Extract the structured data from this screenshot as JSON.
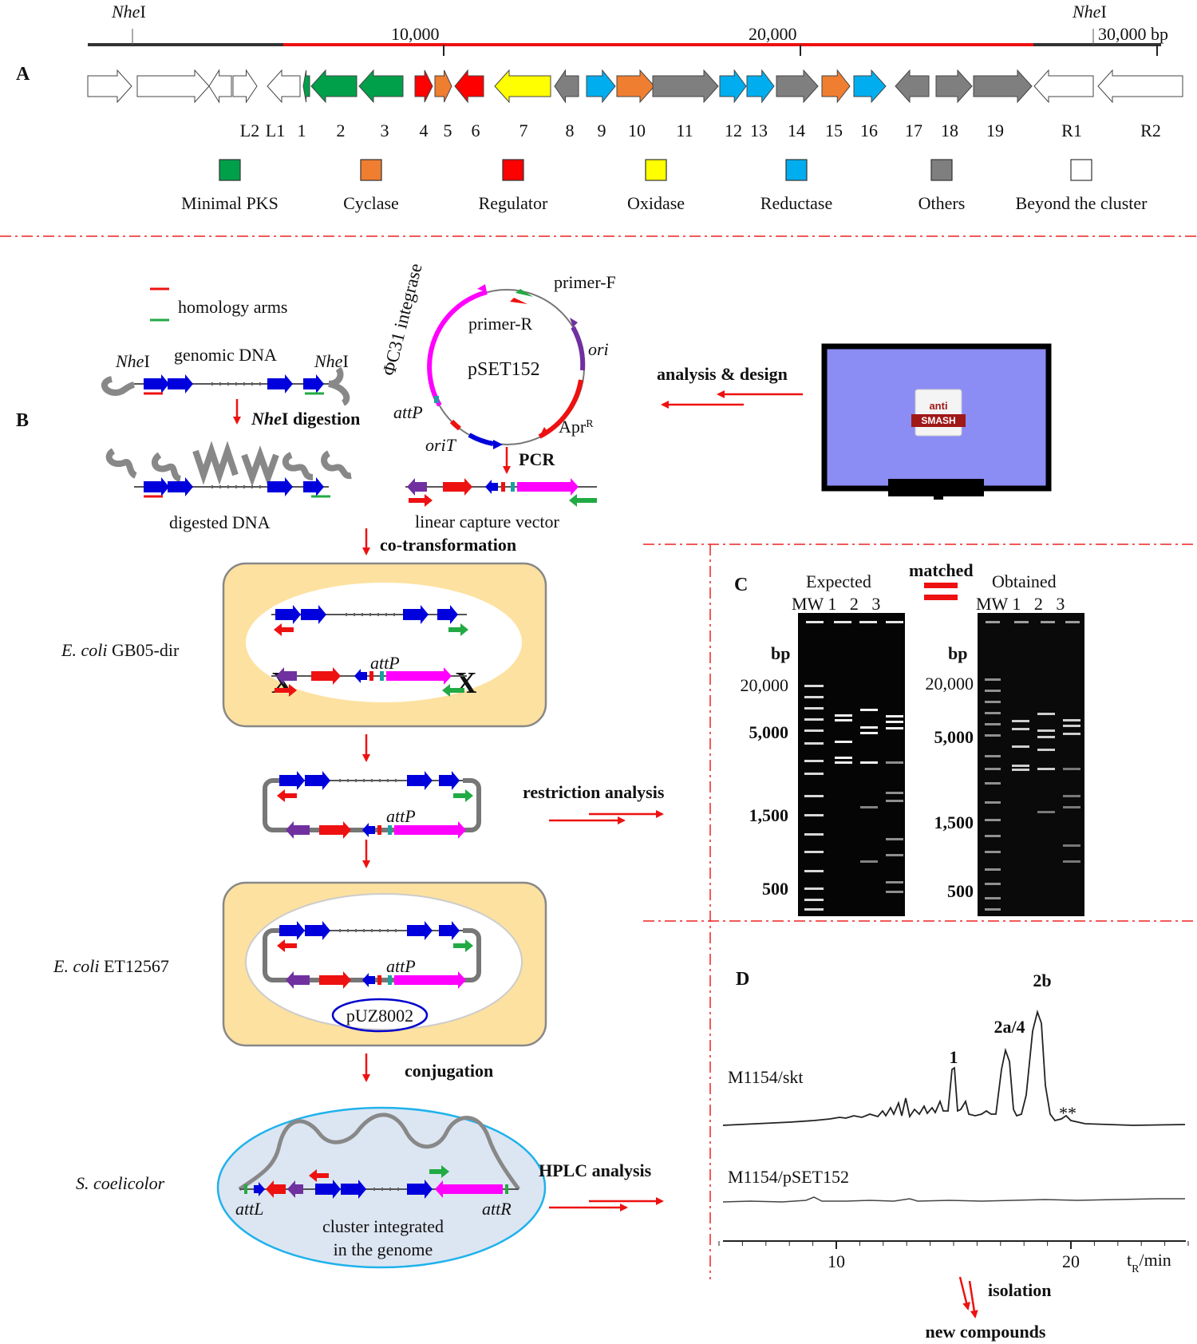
{
  "panelA": {
    "label": "A",
    "scale": {
      "nhe_left": "Nhe",
      "nhe_left_suffix": "I",
      "nhe_right": "Nhe",
      "nhe_right_suffix": "I",
      "tick10k": "10,000",
      "tick20k": "20,000",
      "tick30k": "30,000 bp"
    },
    "gene_labels": [
      "L2",
      "L1",
      "1",
      "2",
      "3",
      "4",
      "5",
      "6",
      "7",
      "8",
      "9",
      "10",
      "11",
      "12",
      "13",
      "14",
      "15",
      "16",
      "17",
      "18",
      "19",
      "R1",
      "R2"
    ],
    "legend": [
      {
        "label": "Minimal PKS",
        "color": "#00a04a"
      },
      {
        "label": "Cyclase",
        "color": "#f07e30"
      },
      {
        "label": "Regulator",
        "color": "#ff0000"
      },
      {
        "label": "Oxidase",
        "color": "#ffff00"
      },
      {
        "label": "Reductase",
        "color": "#00aeef"
      },
      {
        "label": "Others",
        "color": "#7f7f7f"
      },
      {
        "label": "Beyond the cluster",
        "color": "#ffffff"
      }
    ]
  },
  "panelB": {
    "label": "B",
    "homology_arms": "homology arms",
    "nhe1": "Nhe",
    "nhe1_suffix": "I",
    "genomic_dna": "genomic DNA",
    "nhe2": "Nhe",
    "nhe2_suffix": "I",
    "nhe_digestion": "Nhe",
    "nhe_digestion_suffix": "I digestion",
    "digested_dna": "digested DNA",
    "integrase": "ΦC31 integrase",
    "primer_f": "primer-F",
    "primer_r": "primer-R",
    "plasmid": "pSET152",
    "ori": "ori",
    "attp_plasmid": "attP",
    "orit": "oriT",
    "apr": "Apr",
    "apr_sup": "R",
    "pcr": "PCR",
    "linear_vector": "linear capture vector",
    "analysis_design": "analysis & design",
    "antismash_top": "anti",
    "antismash_bottom": "SMASH",
    "cotransformation": "co-transformation",
    "ecoli1_italic": "E. coli",
    "ecoli1_rest": " GB05-dir",
    "attp1": "attP",
    "attp2": "attP",
    "restriction": "restriction analysis",
    "ecoli2_italic": "E. coli",
    "ecoli2_rest": " ET12567",
    "attp3": "attP",
    "puz": "pUZ8002",
    "conjugation": "conjugation",
    "scoeli": "S. coelicolor",
    "attl": "attL",
    "attr": "attR",
    "integrated1": "cluster integrated",
    "integrated2": "in the genome",
    "hplc": "HPLC analysis"
  },
  "panelC": {
    "label": "C",
    "expected": "Expected",
    "matched": "matched",
    "obtained": "Obtained",
    "lanes": "MW 1   2   3",
    "bp": "bp",
    "markers": [
      "20,000",
      "5,000",
      "1,500",
      "500"
    ]
  },
  "panelD": {
    "label": "D",
    "sample1": "M1154/skt",
    "sample2": "M1154/pSET152",
    "peak1": "1",
    "peak2": "2a/4",
    "peak3": "2b",
    "stars": "**",
    "tick10": "10",
    "tick20": "20",
    "axis_t": "t",
    "axis_sub": "R",
    "axis_unit": "/min",
    "isolation": "isolation",
    "new_compounds": "new compounds"
  }
}
